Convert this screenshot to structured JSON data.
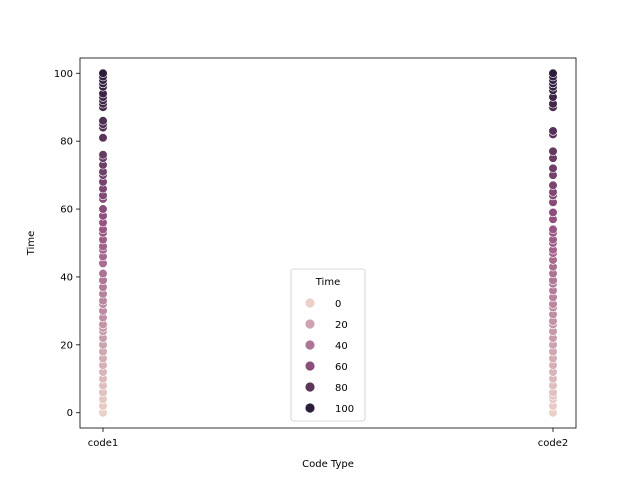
{
  "chart_data": {
    "type": "scatter",
    "title": "",
    "xlabel": "Code Type",
    "ylabel": "Time",
    "categories": [
      "code1",
      "code2"
    ],
    "ylim": [
      -4.5,
      104.5
    ],
    "yticks": [
      0,
      20,
      40,
      60,
      80,
      100
    ],
    "hue": {
      "name": "Time",
      "range": [
        0,
        100
      ],
      "color_low": "#ebd0c8",
      "color_high": "#2d1d3c"
    },
    "legend": {
      "title": "Time",
      "position": "bottom-center",
      "entries": [
        {
          "label": "0",
          "value": 0
        },
        {
          "label": "20",
          "value": 20
        },
        {
          "label": "40",
          "value": 40
        },
        {
          "label": "60",
          "value": 60
        },
        {
          "label": "80",
          "value": 80
        },
        {
          "label": "100",
          "value": 100
        }
      ]
    },
    "series": [
      {
        "category": "code1",
        "values": [
          0,
          2,
          4,
          6,
          8,
          10,
          12,
          14,
          16,
          18,
          20,
          22,
          24,
          25,
          26,
          28,
          30,
          32,
          33,
          35,
          37,
          39,
          41,
          44,
          46,
          48,
          49,
          51,
          53,
          54,
          56,
          58,
          60,
          63,
          64,
          66,
          68,
          70,
          71,
          73,
          75,
          76,
          81,
          84,
          85,
          86,
          90,
          91,
          92,
          93,
          94,
          96,
          97,
          98,
          99,
          100
        ]
      },
      {
        "category": "code2",
        "values": [
          0,
          2,
          4,
          5,
          6,
          8,
          10,
          12,
          14,
          16,
          18,
          20,
          22,
          24,
          26,
          27,
          29,
          31,
          32,
          34,
          36,
          38,
          39,
          41,
          43,
          45,
          47,
          48,
          50,
          51,
          53,
          54,
          57,
          59,
          62,
          64,
          65,
          67,
          70,
          72,
          75,
          77,
          82,
          83,
          90,
          91,
          93,
          95,
          96,
          97,
          98,
          99,
          100
        ]
      }
    ],
    "grid": false
  }
}
